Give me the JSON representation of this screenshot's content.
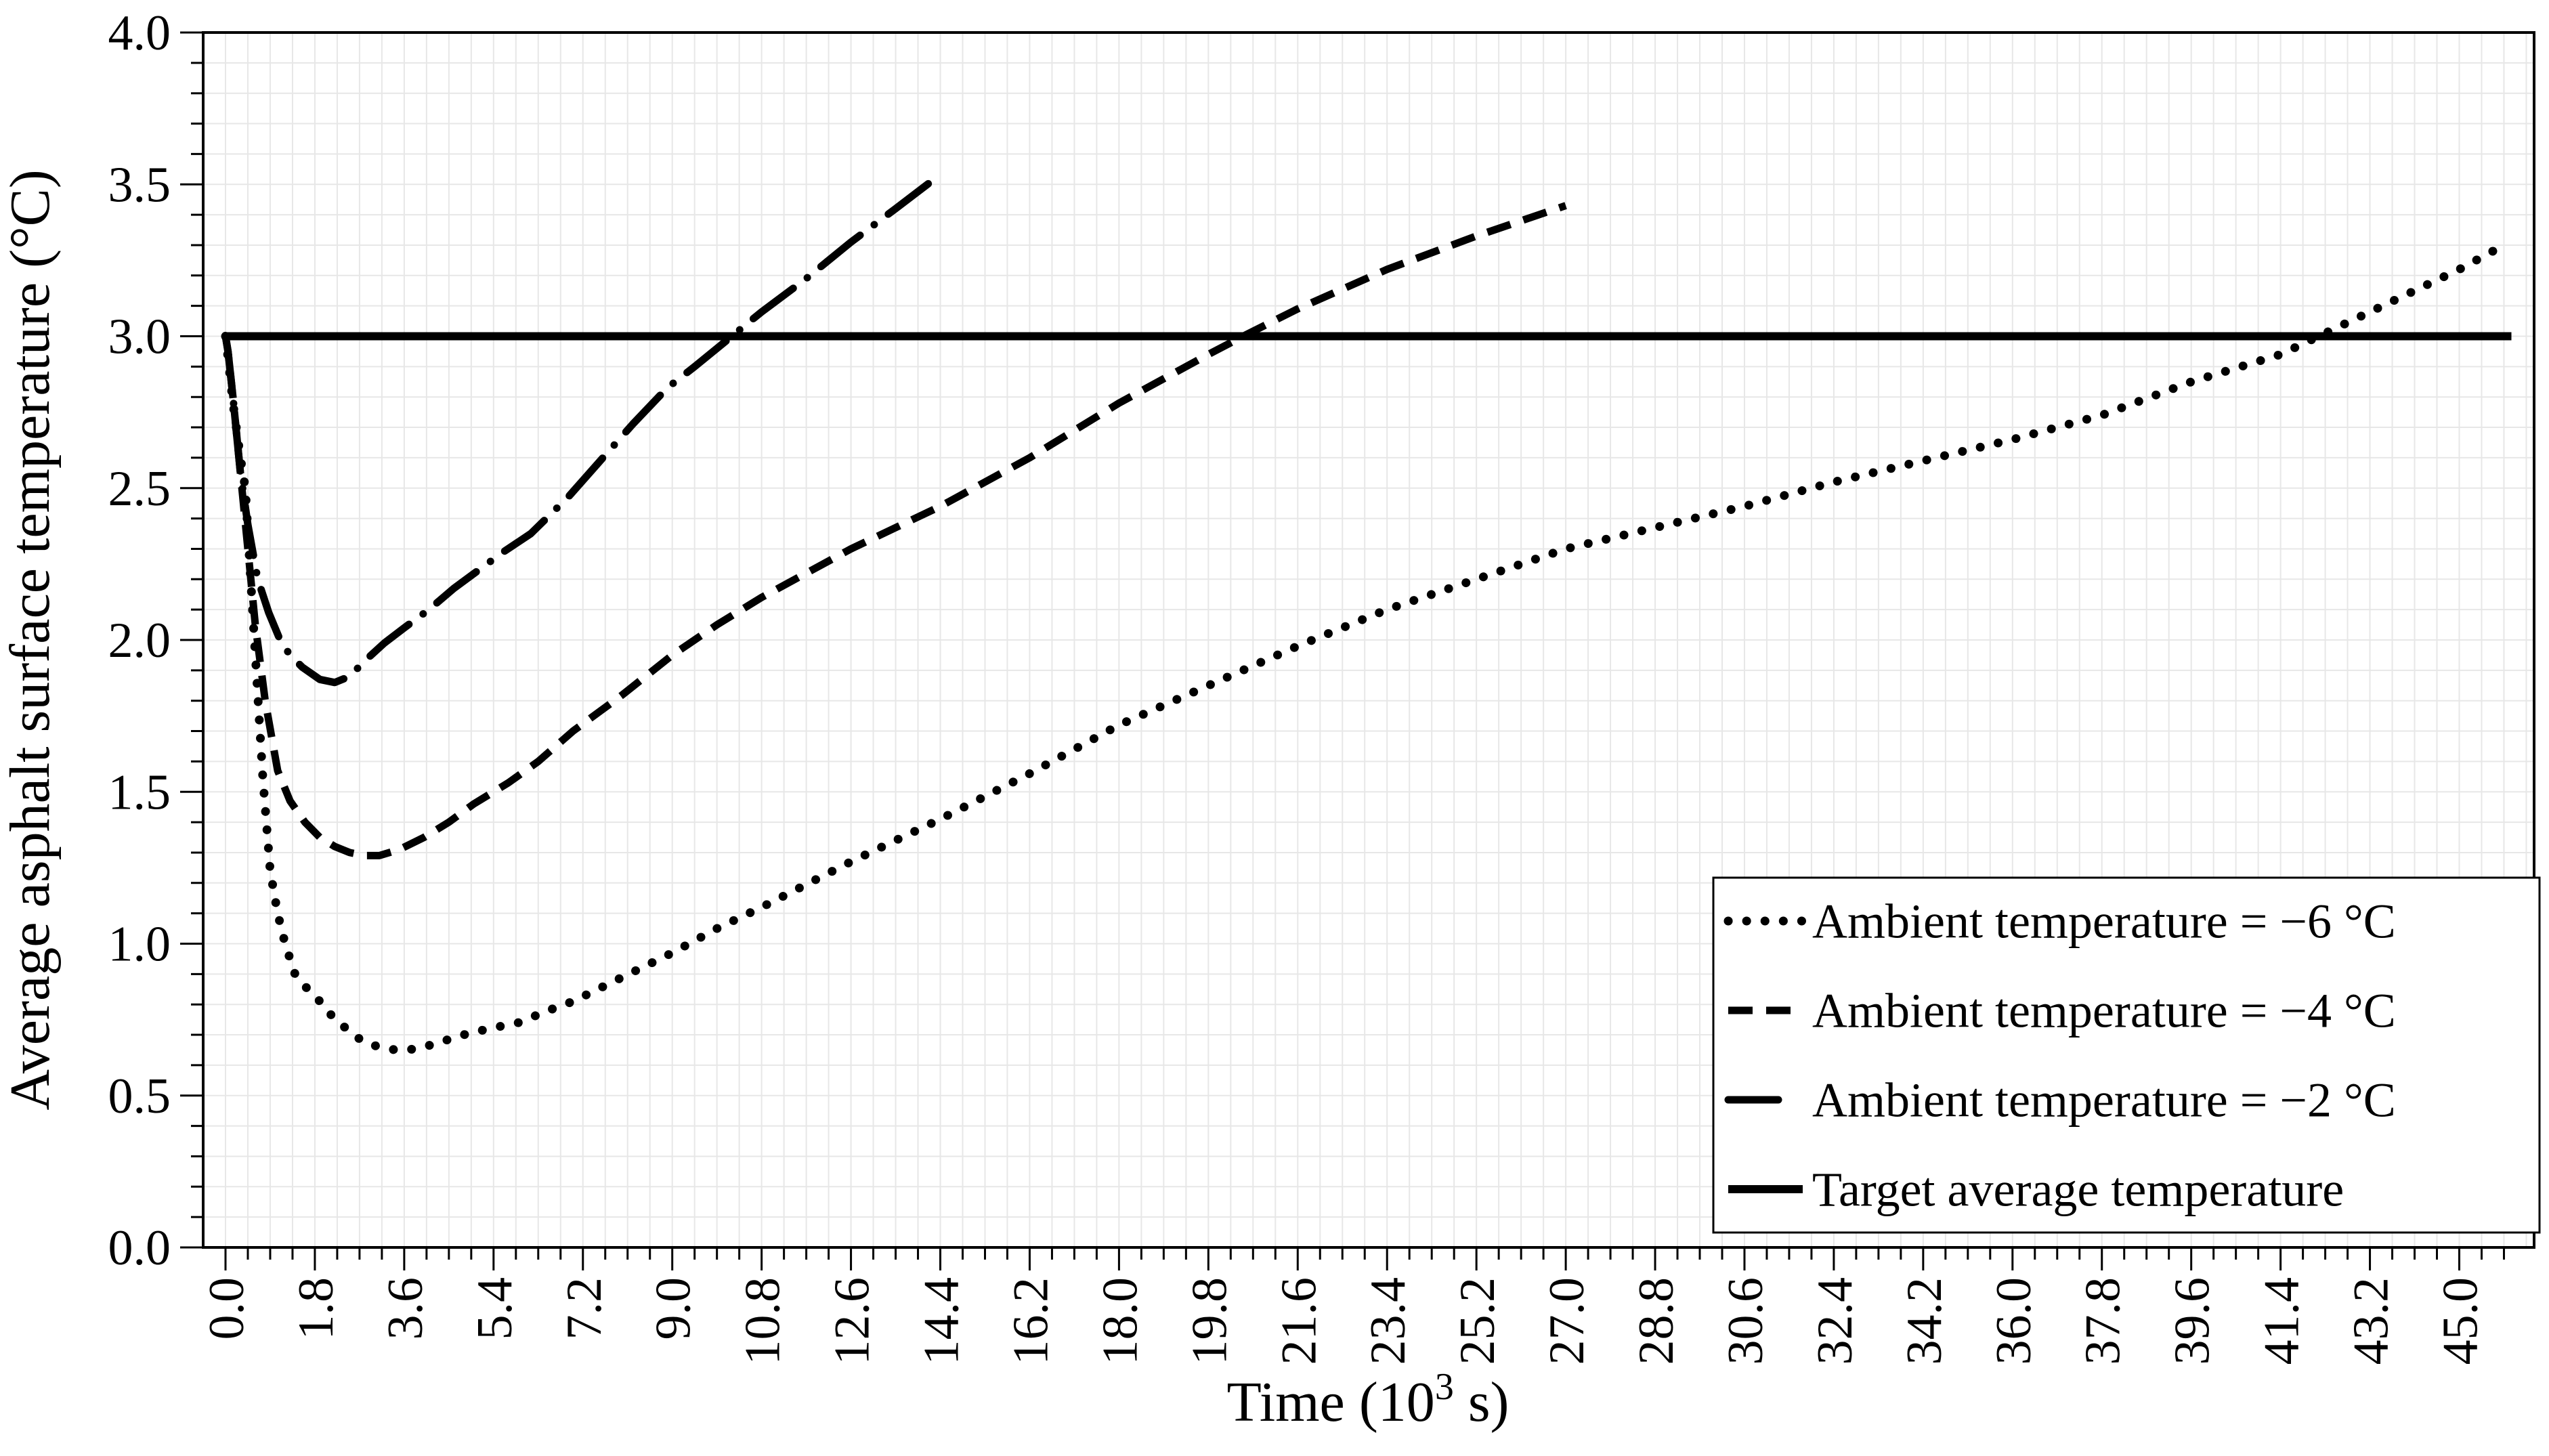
{
  "chart_data": {
    "type": "line",
    "title": "",
    "xlabel": "Time (10³ s)",
    "xlabel_parts": {
      "prefix": "Time (10",
      "sup": "3",
      "suffix": " s)"
    },
    "ylabel": "Average asphalt surface temperature (°C)",
    "grid": true,
    "legend_position": "bottom-right",
    "colors": {
      "series": "#000000",
      "grid": "#e7e7e7",
      "background": "#ffffff",
      "frame": "#000000"
    },
    "x_axis": {
      "min": -0.45,
      "max": 46.5,
      "major_step": 1.8,
      "minor_step": 0.45,
      "tick_labels": [
        "0.0",
        "1.8",
        "3.6",
        "5.4",
        "7.2",
        "9.0",
        "10.8",
        "12.6",
        "14.4",
        "16.2",
        "18.0",
        "19.8",
        "21.6",
        "23.4",
        "25.2",
        "27.0",
        "28.8",
        "30.6",
        "32.4",
        "34.2",
        "36.0",
        "37.8",
        "39.6",
        "41.4",
        "43.2",
        "45.0"
      ]
    },
    "y_axis": {
      "min": 0.0,
      "max": 4.0,
      "major_step": 0.5,
      "minor_step": 0.1,
      "tick_labels": [
        "0.0",
        "0.5",
        "1.0",
        "1.5",
        "2.0",
        "2.5",
        "3.0",
        "3.5",
        "4.0"
      ]
    },
    "series": [
      {
        "name": "Ambient temperature = −6 °C",
        "style": "dotted",
        "points": [
          [
            0,
            3.0
          ],
          [
            0.05,
            2.93
          ],
          [
            0.15,
            2.78
          ],
          [
            0.3,
            2.6
          ],
          [
            0.4,
            2.5
          ],
          [
            0.5,
            2.22
          ],
          [
            0.6,
            1.95
          ],
          [
            0.75,
            1.55
          ],
          [
            0.9,
            1.24
          ],
          [
            1.05,
            1.1
          ],
          [
            1.2,
            1.0
          ],
          [
            1.4,
            0.9
          ],
          [
            1.6,
            0.86
          ],
          [
            1.85,
            0.82
          ],
          [
            2.1,
            0.77
          ],
          [
            2.5,
            0.71
          ],
          [
            2.8,
            0.675
          ],
          [
            3.1,
            0.66
          ],
          [
            3.5,
            0.648
          ],
          [
            3.9,
            0.655
          ],
          [
            4.3,
            0.675
          ],
          [
            4.8,
            0.7
          ],
          [
            5.3,
            0.72
          ],
          [
            5.9,
            0.74
          ],
          [
            6.5,
            0.78
          ],
          [
            7.0,
            0.81
          ],
          [
            8.0,
            0.89
          ],
          [
            9.0,
            0.97
          ],
          [
            9.9,
            1.05
          ],
          [
            10.8,
            1.12
          ],
          [
            12.6,
            1.27
          ],
          [
            14.4,
            1.41
          ],
          [
            16.2,
            1.56
          ],
          [
            18.0,
            1.72
          ],
          [
            19.8,
            1.85
          ],
          [
            21.6,
            1.98
          ],
          [
            23.4,
            2.1
          ],
          [
            25.2,
            2.2
          ],
          [
            27.0,
            2.3
          ],
          [
            28.8,
            2.37
          ],
          [
            30.6,
            2.44
          ],
          [
            32.4,
            2.52
          ],
          [
            34.2,
            2.59
          ],
          [
            36.0,
            2.66
          ],
          [
            37.8,
            2.74
          ],
          [
            39.6,
            2.85
          ],
          [
            41.4,
            2.94
          ],
          [
            43.2,
            3.08
          ],
          [
            45.0,
            3.22
          ],
          [
            45.9,
            3.3
          ]
        ]
      },
      {
        "name": "Ambient temperature = −4 °C",
        "style": "dashed",
        "points": [
          [
            0,
            3.0
          ],
          [
            0.05,
            2.95
          ],
          [
            0.15,
            2.8
          ],
          [
            0.3,
            2.55
          ],
          [
            0.45,
            2.3
          ],
          [
            0.6,
            2.05
          ],
          [
            0.8,
            1.8
          ],
          [
            1.05,
            1.57
          ],
          [
            1.3,
            1.47
          ],
          [
            1.6,
            1.4
          ],
          [
            1.9,
            1.35
          ],
          [
            2.2,
            1.32
          ],
          [
            2.5,
            1.3
          ],
          [
            2.8,
            1.29
          ],
          [
            3.1,
            1.29
          ],
          [
            3.5,
            1.31
          ],
          [
            4.0,
            1.35
          ],
          [
            4.5,
            1.4
          ],
          [
            5.0,
            1.46
          ],
          [
            5.7,
            1.53
          ],
          [
            6.3,
            1.6
          ],
          [
            7.0,
            1.7
          ],
          [
            8.0,
            1.82
          ],
          [
            9.0,
            1.95
          ],
          [
            9.9,
            2.05
          ],
          [
            10.8,
            2.14
          ],
          [
            12.6,
            2.3
          ],
          [
            14.4,
            2.44
          ],
          [
            16.2,
            2.6
          ],
          [
            18.0,
            2.78
          ],
          [
            19.8,
            2.94
          ],
          [
            20.5,
            3.0
          ],
          [
            21.6,
            3.09
          ],
          [
            23.4,
            3.22
          ],
          [
            25.2,
            3.33
          ],
          [
            27.0,
            3.43
          ]
        ]
      },
      {
        "name": "Ambient temperature = −2 °C",
        "style": "dash-dot",
        "points": [
          [
            0,
            3.0
          ],
          [
            0.05,
            2.95
          ],
          [
            0.15,
            2.8
          ],
          [
            0.3,
            2.55
          ],
          [
            0.45,
            2.38
          ],
          [
            0.65,
            2.2
          ],
          [
            0.87,
            2.09
          ],
          [
            1.1,
            2.0
          ],
          [
            1.3,
            1.95
          ],
          [
            1.55,
            1.91
          ],
          [
            1.9,
            1.87
          ],
          [
            2.2,
            1.86
          ],
          [
            2.5,
            1.88
          ],
          [
            2.8,
            1.93
          ],
          [
            3.2,
            1.99
          ],
          [
            3.6,
            2.04
          ],
          [
            4.1,
            2.1
          ],
          [
            4.6,
            2.17
          ],
          [
            5.1,
            2.23
          ],
          [
            5.6,
            2.29
          ],
          [
            6.15,
            2.35
          ],
          [
            6.9,
            2.47
          ],
          [
            7.55,
            2.59
          ],
          [
            8.2,
            2.71
          ],
          [
            8.9,
            2.83
          ],
          [
            9.45,
            2.9
          ],
          [
            10.2,
            3.0
          ],
          [
            10.8,
            3.08
          ],
          [
            11.7,
            3.19
          ],
          [
            12.6,
            3.31
          ],
          [
            13.5,
            3.42
          ],
          [
            14.3,
            3.52
          ]
        ]
      },
      {
        "name": "Target average temperature",
        "style": "solid",
        "points": [
          [
            0,
            3.0
          ],
          [
            46.05,
            3.0
          ]
        ]
      }
    ]
  }
}
